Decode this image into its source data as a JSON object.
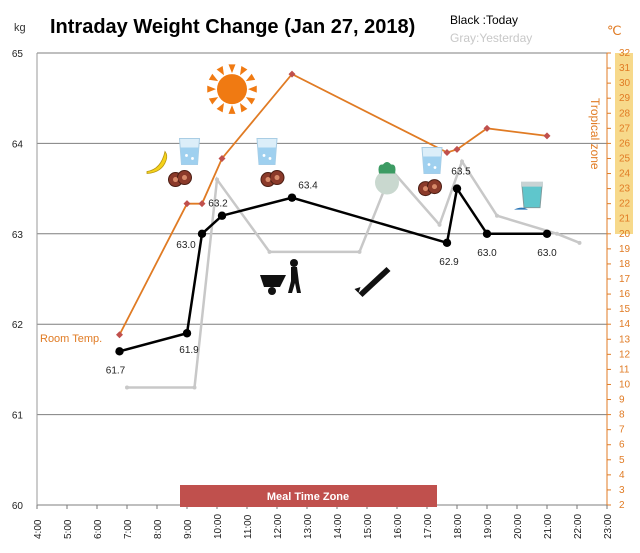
{
  "chart_data": {
    "type": "line",
    "title": "Intraday Weight Change (Jan 27, 2018)",
    "legend": [
      {
        "label": "Black :Today",
        "color": "#000000"
      },
      {
        "label": "Gray:Yesterday",
        "color": "#c8c8c8"
      }
    ],
    "y_left": {
      "unit": "kg",
      "range": [
        60,
        65
      ],
      "ticks": [
        "60",
        "61",
        "62",
        "63",
        "64",
        "65"
      ]
    },
    "y_right": {
      "unit": "℃",
      "range": [
        2,
        32
      ],
      "ticks": [
        "2",
        "3",
        "4",
        "5",
        "6",
        "7",
        "8",
        "9",
        "10",
        "11",
        "12",
        "13",
        "14",
        "15",
        "16",
        "17",
        "18",
        "19",
        "20",
        "21",
        "22",
        "23",
        "24",
        "25",
        "26",
        "27",
        "28",
        "29",
        "30",
        "31",
        "32"
      ]
    },
    "x_axis": {
      "range": [
        "4:00",
        "23:00"
      ],
      "ticks": [
        "4:00",
        "5:00",
        "6:00",
        "7:00",
        "8:00",
        "9:00",
        "10:00",
        "11:00",
        "12:00",
        "13:00",
        "14:00",
        "15:00",
        "16:00",
        "17:00",
        "18:00",
        "19:00",
        "20:00",
        "21:00",
        "22:00",
        "23:00"
      ]
    },
    "series": [
      {
        "name": "Today",
        "color": "#000000",
        "points": [
          {
            "x": "6:45",
            "y": 61.7,
            "label": "61.7"
          },
          {
            "x": "9:00",
            "y": 61.9,
            "label": "61.9"
          },
          {
            "x": "9:30",
            "y": 63.0,
            "label": "63.0"
          },
          {
            "x": "10:10",
            "y": 63.2,
            "label": "63.2"
          },
          {
            "x": "12:30",
            "y": 63.4,
            "label": "63.4"
          },
          {
            "x": "17:40",
            "y": 62.9,
            "label": "62.9"
          },
          {
            "x": "18:00",
            "y": 63.5,
            "label": "63.5"
          },
          {
            "x": "19:00",
            "y": 63.0,
            "label": "63.0"
          },
          {
            "x": "21:00",
            "y": 63.0,
            "label": "63.0"
          }
        ]
      },
      {
        "name": "Yesterday",
        "color": "#c8c8c8",
        "points": [
          {
            "x": "7:00",
            "y": 61.3
          },
          {
            "x": "9:15",
            "y": 61.3
          },
          {
            "x": "10:00",
            "y": 63.6
          },
          {
            "x": "11:45",
            "y": 62.8
          },
          {
            "x": "14:45",
            "y": 62.8
          },
          {
            "x": "15:50",
            "y": 63.7
          },
          {
            "x": "17:25",
            "y": 63.1
          },
          {
            "x": "18:10",
            "y": 63.8
          },
          {
            "x": "19:20",
            "y": 63.2
          },
          {
            "x": "21:20",
            "y": 63.0
          },
          {
            "x": "22:05",
            "y": 62.9
          }
        ]
      },
      {
        "name": "Room Temp.",
        "color": "#e07b24",
        "axis": "right",
        "points": [
          {
            "x": "6:45",
            "y": 13.3
          },
          {
            "x": "9:00",
            "y": 22.0
          },
          {
            "x": "9:30",
            "y": 22.0
          },
          {
            "x": "10:10",
            "y": 25.0
          },
          {
            "x": "12:30",
            "y": 30.6
          },
          {
            "x": "17:40",
            "y": 25.4
          },
          {
            "x": "18:00",
            "y": 25.6
          },
          {
            "x": "19:00",
            "y": 27.0
          },
          {
            "x": "21:00",
            "y": 26.5
          }
        ]
      }
    ],
    "room_temp_label": "Room Temp.",
    "tropical_zone": {
      "label": "Tropical zone",
      "range": [
        20,
        32
      ],
      "color": "#f7d98b"
    },
    "meal_time_zone": {
      "label": "Meal Time Zone",
      "x_range": [
        "9:00",
        "18:00"
      ],
      "color": "#c0504d"
    },
    "icons": [
      {
        "name": "sun-icon",
        "x": "10:30",
        "y": 64.6
      },
      {
        "name": "banana-icon",
        "x": "8:00",
        "y": 63.8
      },
      {
        "name": "water-glass-icon",
        "x": "9:05",
        "y": 63.9
      },
      {
        "name": "water-glass-icon",
        "x": "11:40",
        "y": 63.9
      },
      {
        "name": "water-glass-icon",
        "x": "17:10",
        "y": 63.8
      },
      {
        "name": "cookie-icon",
        "x": "8:45",
        "y": 63.6
      },
      {
        "name": "cookie-icon",
        "x": "11:50",
        "y": 63.6
      },
      {
        "name": "cookie-icon",
        "x": "17:05",
        "y": 63.5
      },
      {
        "name": "radish-icon",
        "x": "15:40",
        "y": 63.6
      },
      {
        "name": "cup-icon",
        "x": "20:30",
        "y": 63.4
      },
      {
        "name": "wheelbarrow-icon",
        "x": "12:10",
        "y": 62.5
      },
      {
        "name": "saw-icon",
        "x": "15:15",
        "y": 62.5
      }
    ]
  }
}
